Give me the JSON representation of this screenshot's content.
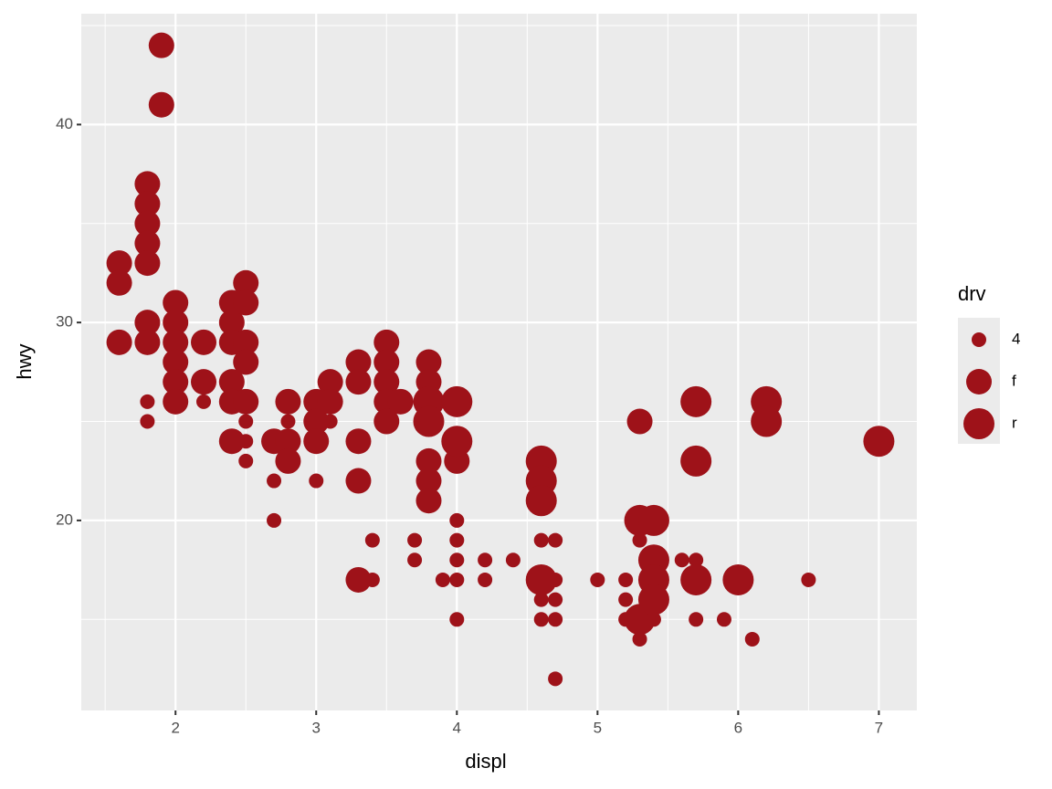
{
  "chart_data": {
    "type": "scatter",
    "x_label": "displ",
    "y_label": "hwy",
    "xlim": [
      1.33,
      7.27
    ],
    "ylim": [
      10.4,
      45.6
    ],
    "xticks": [
      2,
      3,
      4,
      5,
      6,
      7
    ],
    "yticks": [
      20,
      30,
      40
    ],
    "grid": true,
    "legend_title": "drv",
    "legend_position": "right",
    "series": [
      {
        "name": "4",
        "color": "#9e1219",
        "x": [
          1.8,
          1.8,
          2.2,
          2.5,
          2.5,
          2.5,
          2.7,
          2.7,
          2.8,
          3.0,
          3.1,
          3.4,
          3.4,
          3.7,
          3.7,
          3.9,
          4.0,
          4.0,
          4.0,
          4.0,
          4.0,
          4.2,
          4.2,
          4.4,
          4.6,
          4.6,
          4.6,
          4.7,
          4.7,
          4.7,
          4.7,
          4.7,
          5.0,
          5.2,
          5.2,
          5.2,
          5.3,
          5.3,
          5.4,
          5.6,
          5.7,
          5.7,
          5.9,
          6.1,
          6.5
        ],
        "values": [
          26,
          25,
          26,
          25,
          24,
          23,
          22,
          20,
          25,
          22,
          25,
          19,
          17,
          19,
          18,
          17,
          20,
          19,
          18,
          17,
          15,
          18,
          17,
          18,
          19,
          16,
          15,
          19,
          17,
          16,
          15,
          12,
          17,
          17,
          16,
          15,
          19,
          14,
          15,
          18,
          18,
          15,
          15,
          14,
          17
        ]
      },
      {
        "name": "f",
        "color": "#9e1219",
        "x": [
          1.6,
          1.6,
          1.6,
          1.8,
          1.8,
          1.8,
          1.8,
          1.8,
          1.8,
          1.8,
          1.9,
          1.9,
          2.0,
          2.0,
          2.0,
          2.0,
          2.0,
          2.0,
          2.2,
          2.2,
          2.4,
          2.4,
          2.4,
          2.4,
          2.4,
          2.4,
          2.5,
          2.5,
          2.5,
          2.5,
          2.5,
          2.7,
          2.8,
          2.8,
          2.8,
          3.0,
          3.0,
          3.0,
          3.1,
          3.1,
          3.3,
          3.3,
          3.3,
          3.3,
          3.3,
          3.5,
          3.5,
          3.5,
          3.5,
          3.5,
          3.6,
          3.8,
          3.8,
          3.8,
          3.8,
          3.8,
          4.0,
          5.3
        ],
        "values": [
          33,
          32,
          29,
          37,
          36,
          35,
          34,
          33,
          30,
          29,
          44,
          41,
          31,
          30,
          29,
          28,
          27,
          26,
          29,
          27,
          31,
          30,
          29,
          27,
          26,
          24,
          32,
          31,
          29,
          28,
          26,
          24,
          26,
          24,
          23,
          26,
          25,
          24,
          27,
          26,
          28,
          27,
          24,
          22,
          17,
          29,
          28,
          27,
          26,
          25,
          26,
          28,
          27,
          23,
          22,
          21,
          23,
          25
        ]
      },
      {
        "name": "r",
        "color": "#9e1219",
        "x": [
          3.8,
          3.8,
          4.0,
          4.0,
          4.6,
          4.6,
          4.6,
          4.6,
          5.3,
          5.3,
          5.4,
          5.4,
          5.4,
          5.4,
          5.7,
          5.7,
          5.7,
          6.0,
          6.2,
          6.2,
          7.0
        ],
        "values": [
          26,
          25,
          26,
          24,
          23,
          22,
          21,
          17,
          20,
          15,
          20,
          18,
          17,
          16,
          26,
          23,
          17,
          17,
          26,
          25,
          24
        ]
      }
    ]
  }
}
